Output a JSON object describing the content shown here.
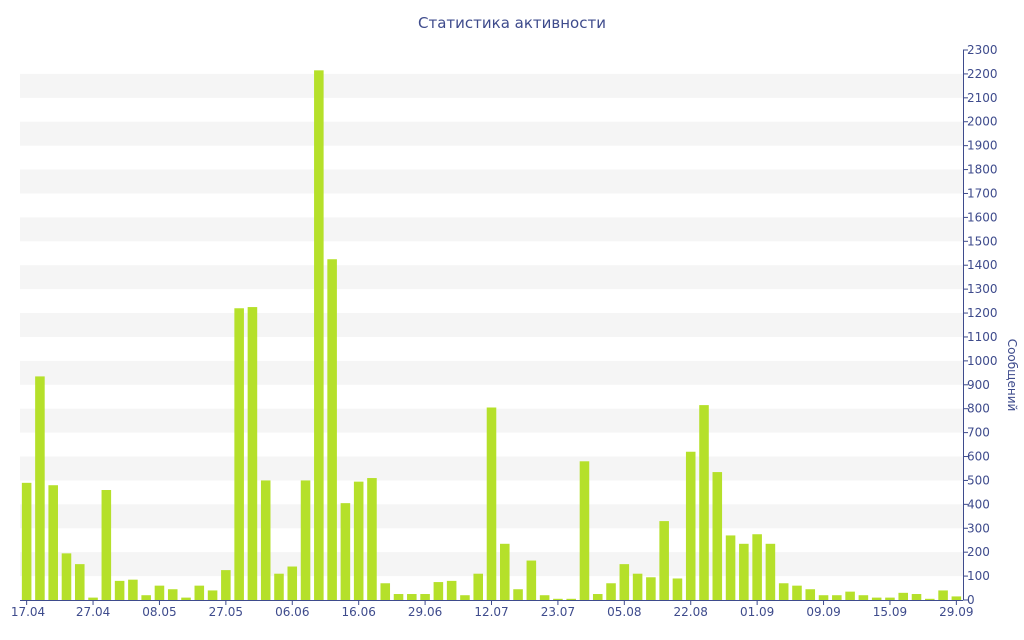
{
  "chart_data": {
    "type": "bar",
    "title": "Статистика активности",
    "xlabel": "",
    "ylabel": "Сообщений",
    "ylim": [
      0,
      2300
    ],
    "y_axis_side": "right",
    "y_ticks": [
      0,
      100,
      200,
      300,
      400,
      500,
      600,
      700,
      800,
      900,
      1000,
      1100,
      1200,
      1300,
      1400,
      1500,
      1600,
      1700,
      1800,
      1900,
      2000,
      2100,
      2200,
      2300
    ],
    "grid": "alternating horizontal bands",
    "bar_color": "#b5e02a",
    "x_tick_labels": [
      {
        "index": 0,
        "label": "17.04"
      },
      {
        "index": 5,
        "label": "27.04"
      },
      {
        "index": 10,
        "label": "08.05"
      },
      {
        "index": 15,
        "label": "27.05"
      },
      {
        "index": 20,
        "label": "06.06"
      },
      {
        "index": 25,
        "label": "16.06"
      },
      {
        "index": 30,
        "label": "29.06"
      },
      {
        "index": 35,
        "label": "12.07"
      },
      {
        "index": 40,
        "label": "23.07"
      },
      {
        "index": 45,
        "label": "05.08"
      },
      {
        "index": 50,
        "label": "22.08"
      },
      {
        "index": 55,
        "label": "01.09"
      },
      {
        "index": 60,
        "label": "09.09"
      },
      {
        "index": 65,
        "label": "15.09"
      },
      {
        "index": 70,
        "label": "29.09"
      }
    ],
    "values": [
      490,
      935,
      480,
      195,
      150,
      10,
      460,
      80,
      85,
      20,
      60,
      45,
      10,
      60,
      40,
      125,
      1220,
      1225,
      500,
      110,
      140,
      500,
      2215,
      1425,
      405,
      495,
      510,
      70,
      25,
      25,
      25,
      75,
      80,
      20,
      110,
      805,
      235,
      45,
      165,
      20,
      5,
      5,
      580,
      25,
      70,
      150,
      110,
      95,
      330,
      90,
      620,
      815,
      535,
      270,
      235,
      275,
      235,
      70,
      60,
      45,
      20,
      20,
      35,
      20,
      10,
      10,
      30,
      25,
      5,
      40,
      15
    ]
  }
}
